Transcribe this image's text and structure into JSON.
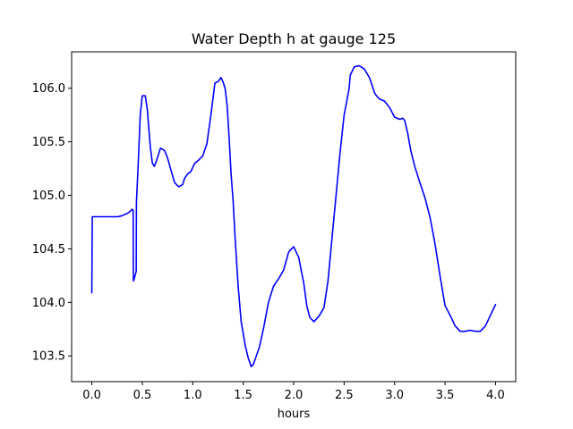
{
  "chart_data": {
    "type": "line",
    "title": "Water Depth h at gauge 125",
    "xlabel": "hours",
    "ylabel": "",
    "xlim": [
      -0.2,
      4.2
    ],
    "ylim": [
      103.26,
      106.34
    ],
    "xticks": [
      0.0,
      0.5,
      1.0,
      1.5,
      2.0,
      2.5,
      3.0,
      3.5,
      4.0
    ],
    "xtick_labels": [
      "0.0",
      "0.5",
      "1.0",
      "1.5",
      "2.0",
      "2.5",
      "3.0",
      "3.5",
      "4.0"
    ],
    "yticks": [
      103.5,
      104.0,
      104.5,
      105.0,
      105.5,
      106.0
    ],
    "ytick_labels": [
      "103.5",
      "104.0",
      "104.5",
      "105.0",
      "105.5",
      "106.0"
    ],
    "grid": false,
    "legend": "none",
    "series": [
      {
        "color": "#0000ff",
        "x": [
          0.0,
          0.005,
          0.01,
          0.05,
          0.1,
          0.2,
          0.26,
          0.3,
          0.35,
          0.38,
          0.4,
          0.41,
          0.412,
          0.42,
          0.44,
          0.442,
          0.46,
          0.48,
          0.5,
          0.53,
          0.55,
          0.58,
          0.6,
          0.62,
          0.65,
          0.68,
          0.72,
          0.75,
          0.78,
          0.82,
          0.86,
          0.9,
          0.92,
          0.95,
          0.98,
          1.02,
          1.06,
          1.1,
          1.14,
          1.18,
          1.22,
          1.25,
          1.28,
          1.3,
          1.32,
          1.34,
          1.36,
          1.38,
          1.4,
          1.42,
          1.45,
          1.48,
          1.52,
          1.55,
          1.58,
          1.6,
          1.63,
          1.66,
          1.7,
          1.75,
          1.8,
          1.85,
          1.9,
          1.95,
          2.0,
          2.05,
          2.1,
          2.13,
          2.16,
          2.2,
          2.25,
          2.3,
          2.34,
          2.38,
          2.42,
          2.46,
          2.5,
          2.55,
          2.56,
          2.6,
          2.65,
          2.7,
          2.75,
          2.78,
          2.8,
          2.82,
          2.85,
          2.9,
          2.95,
          3.0,
          3.05,
          3.08,
          3.1,
          3.13,
          3.16,
          3.2,
          3.25,
          3.3,
          3.35,
          3.4,
          3.45,
          3.5,
          3.55,
          3.6,
          3.65,
          3.7,
          3.75,
          3.8,
          3.85,
          3.9,
          3.95,
          4.0
        ],
        "y": [
          104.09,
          104.8,
          104.8,
          104.8,
          104.8,
          104.8,
          104.8,
          104.81,
          104.83,
          104.85,
          104.87,
          104.86,
          104.2,
          104.22,
          104.29,
          104.93,
          105.3,
          105.75,
          105.93,
          105.93,
          105.8,
          105.45,
          105.3,
          105.27,
          105.35,
          105.44,
          105.42,
          105.35,
          105.25,
          105.12,
          105.08,
          105.1,
          105.16,
          105.2,
          105.22,
          105.3,
          105.33,
          105.37,
          105.48,
          105.75,
          106.05,
          106.06,
          106.1,
          106.06,
          106.0,
          105.85,
          105.55,
          105.2,
          104.95,
          104.6,
          104.15,
          103.82,
          103.6,
          103.48,
          103.4,
          103.42,
          103.5,
          103.58,
          103.75,
          104.0,
          104.15,
          104.22,
          104.3,
          104.47,
          104.52,
          104.42,
          104.18,
          103.97,
          103.86,
          103.82,
          103.87,
          103.95,
          104.2,
          104.6,
          105.0,
          105.4,
          105.75,
          106.0,
          106.12,
          106.2,
          106.21,
          106.18,
          106.1,
          106.02,
          105.96,
          105.93,
          105.9,
          105.88,
          105.82,
          105.73,
          105.71,
          105.72,
          105.7,
          105.58,
          105.42,
          105.27,
          105.12,
          104.98,
          104.8,
          104.55,
          104.25,
          103.97,
          103.88,
          103.78,
          103.73,
          103.73,
          103.74,
          103.73,
          103.73,
          103.78,
          103.88,
          103.98
        ]
      }
    ]
  }
}
